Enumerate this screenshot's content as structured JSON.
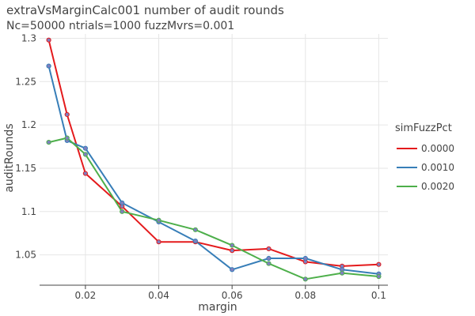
{
  "chart_data": {
    "type": "line",
    "title": "extraVsMarginCalc001 number of audit rounds",
    "subtitle": "Nc=50000 ntrials=1000 fuzzMvrs=0.001",
    "xlabel": "margin",
    "ylabel": "auditRounds",
    "xlim": [
      0.0075,
      0.1025
    ],
    "ylim": [
      1.015,
      1.305
    ],
    "xticks": [
      0.02,
      0.04,
      0.06,
      0.08,
      0.1
    ],
    "xtick_labels": [
      "0.02",
      "0.04",
      "0.06",
      "0.08",
      "0.1"
    ],
    "yticks": [
      1.05,
      1.1,
      1.15,
      1.2,
      1.25,
      1.3
    ],
    "ytick_labels": [
      "1.05",
      "1.1",
      "1.15",
      "1.2",
      "1.25",
      "1.3"
    ],
    "grid": true,
    "legend": {
      "title": "simFuzzPct",
      "position": "right"
    },
    "x": [
      0.01,
      0.015,
      0.02,
      0.03,
      0.04,
      0.05,
      0.06,
      0.07,
      0.08,
      0.09,
      0.1
    ],
    "series": [
      {
        "name": "0.0000",
        "color": "#e41a1c",
        "values": [
          1.298,
          1.212,
          1.144,
          1.106,
          1.065,
          1.065,
          1.055,
          1.057,
          1.042,
          1.037,
          1.039
        ]
      },
      {
        "name": "0.0010",
        "color": "#377eb8",
        "values": [
          1.268,
          1.182,
          1.173,
          1.11,
          1.088,
          1.066,
          1.033,
          1.046,
          1.046,
          1.033,
          1.028
        ]
      },
      {
        "name": "0.0020",
        "color": "#4daf4a",
        "values": [
          1.18,
          1.185,
          1.166,
          1.1,
          1.09,
          1.079,
          1.061,
          1.04,
          1.022,
          1.029,
          1.025
        ]
      }
    ],
    "marker_color": "#7f7fbf"
  }
}
